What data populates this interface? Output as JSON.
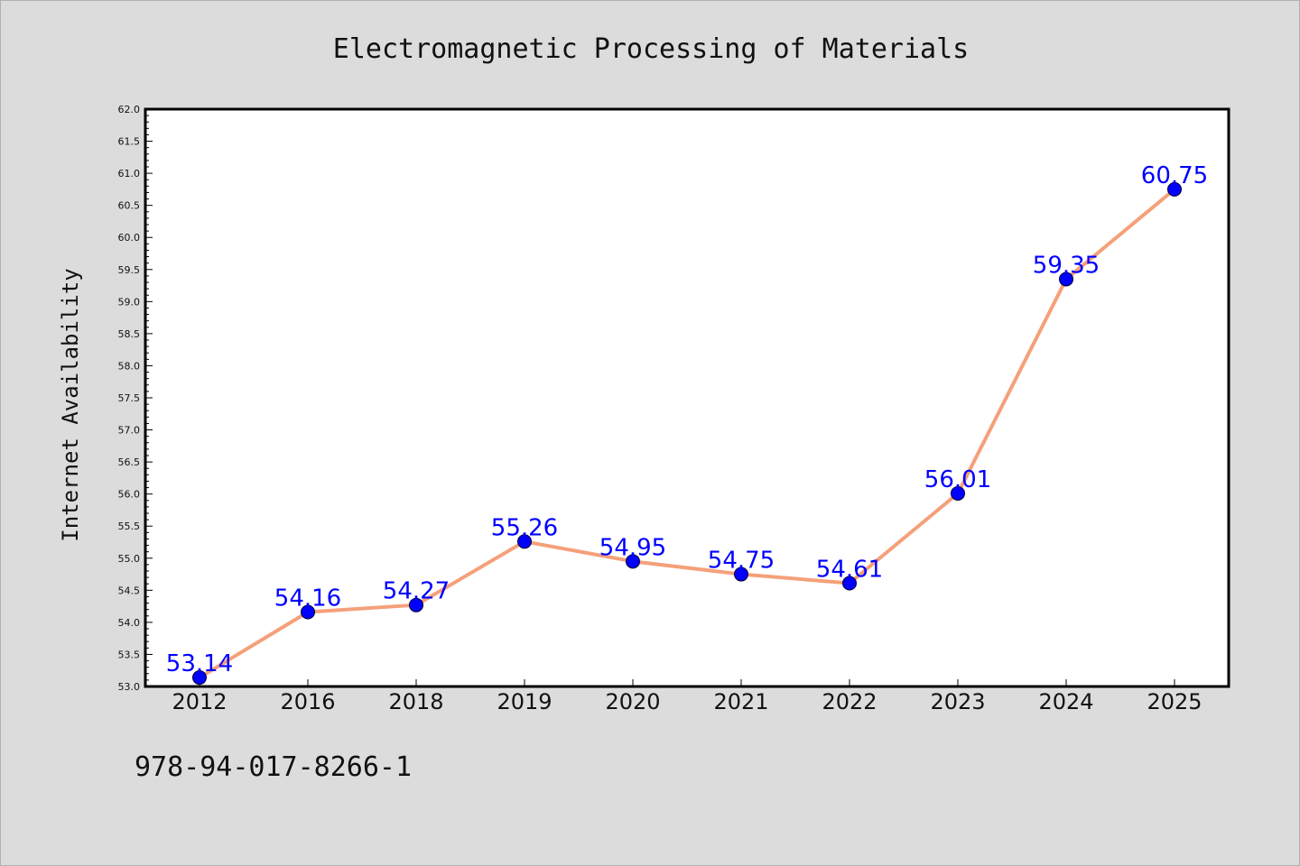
{
  "footer": {
    "isbn": "978-94-017-8266-1"
  },
  "chart_data": {
    "type": "line",
    "title": "Electromagnetic Processing of Materials",
    "xlabel": "",
    "ylabel": "Internet Availability",
    "categories": [
      "2012",
      "2016",
      "2018",
      "2019",
      "2020",
      "2021",
      "2022",
      "2023",
      "2024",
      "2025"
    ],
    "series": [
      {
        "values": [
          53.14,
          54.16,
          54.27,
          55.26,
          54.95,
          54.75,
          54.61,
          56.01,
          59.35,
          60.75
        ],
        "data_labels": [
          "53.14",
          "54.16",
          "54.27",
          "55.26",
          "54.95",
          "54.75",
          "54.61",
          "56.01",
          "59.35",
          "60.75"
        ],
        "line_color": "#f5a07a",
        "marker_color": "#0000ff"
      }
    ],
    "ylim": [
      53.0,
      62.0
    ],
    "y_ticks": [
      "53.0",
      "53.5",
      "54.0",
      "54.5",
      "55.0",
      "55.5",
      "56.0",
      "56.5",
      "57.0",
      "57.5",
      "58.0",
      "58.5",
      "59.0",
      "59.5",
      "60.0",
      "60.5",
      "61.0",
      "61.5",
      "62.0"
    ],
    "grid": false,
    "legend": "none",
    "plot_background": "#ffffff",
    "page_background": "#dcdcdc"
  }
}
